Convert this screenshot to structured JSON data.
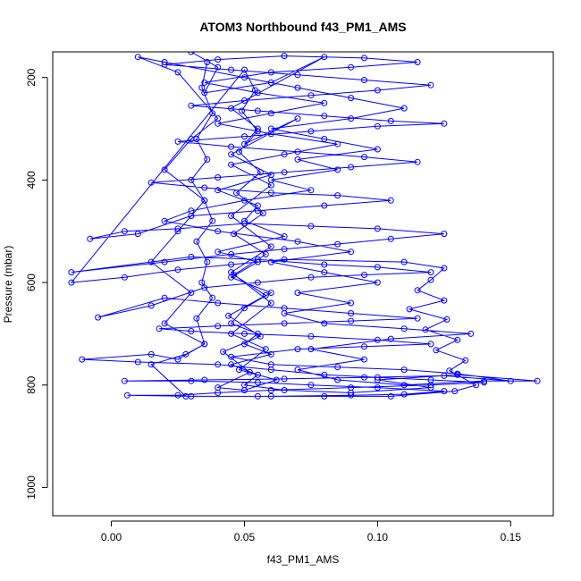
{
  "chart_data": {
    "type": "scatter",
    "title": "ATOM3 Northbound f43_PM1_AMS",
    "xlabel": "f43_PM1_AMS",
    "ylabel": "Pressure (mbar)",
    "xlim": [
      -0.022,
      0.166
    ],
    "ylim": [
      150,
      1055
    ],
    "y_reversed": true,
    "x_ticks": [
      0.0,
      0.05,
      0.1,
      0.15
    ],
    "x_tick_labels": [
      "0.00",
      "0.05",
      "0.10",
      "0.15"
    ],
    "y_ticks": [
      200,
      400,
      600,
      800,
      1000
    ],
    "y_tick_labels": [
      "200",
      "400",
      "600",
      "800",
      "1000"
    ],
    "grid": false,
    "legend": "none",
    "series": [
      {
        "color": "#0000ff",
        "marker": "open-circle",
        "line": true,
        "points": [
          [
            0.03,
            150
          ],
          [
            0.04,
            180
          ],
          [
            0.035,
            230
          ],
          [
            0.06,
            210
          ],
          [
            0.08,
            160
          ],
          [
            0.045,
            260
          ],
          [
            0.055,
            300
          ],
          [
            0.05,
            330
          ],
          [
            0.07,
            280
          ],
          [
            0.045,
            350
          ],
          [
            0.06,
            390
          ],
          [
            0.04,
            420
          ],
          [
            0.055,
            450
          ],
          [
            0.05,
            480
          ],
          [
            0.065,
            510
          ],
          [
            0.04,
            540
          ],
          [
            0.055,
            560
          ],
          [
            0.045,
            590
          ],
          [
            0.06,
            620
          ],
          [
            0.05,
            650
          ],
          [
            0.045,
            680
          ],
          [
            0.055,
            700
          ],
          [
            0.05,
            720
          ],
          [
            0.06,
            740
          ],
          [
            0.045,
            760
          ],
          [
            0.055,
            780
          ],
          [
            0.05,
            800
          ],
          [
            0.065,
            810
          ],
          [
            0.09,
            815
          ],
          [
            0.12,
            805
          ],
          [
            0.1,
            790
          ],
          [
            0.13,
            780
          ],
          [
            0.16,
            792
          ],
          [
            0.14,
            792
          ],
          [
            0.11,
            800
          ],
          [
            0.085,
            790
          ],
          [
            0.07,
            770
          ],
          [
            0.095,
            750
          ],
          [
            0.075,
            730
          ],
          [
            0.105,
            710
          ],
          [
            0.135,
            700
          ],
          [
            0.11,
            690
          ],
          [
            0.08,
            680
          ],
          [
            0.065,
            660
          ],
          [
            0.09,
            640
          ],
          [
            0.07,
            620
          ],
          [
            0.1,
            600
          ],
          [
            0.08,
            580
          ],
          [
            0.06,
            560
          ],
          [
            0.09,
            540
          ],
          [
            0.07,
            520
          ],
          [
            0.04,
            500
          ],
          [
            0.02,
            480
          ],
          [
            0.03,
            460
          ],
          [
            0.05,
            440
          ],
          [
            0.075,
            420
          ],
          [
            0.06,
            400
          ],
          [
            0.085,
            380
          ],
          [
            0.07,
            360
          ],
          [
            0.1,
            340
          ],
          [
            0.08,
            320
          ],
          [
            0.06,
            300
          ],
          [
            0.09,
            280
          ],
          [
            0.11,
            260
          ],
          [
            0.09,
            240
          ],
          [
            0.07,
            220
          ],
          [
            0.05,
            200
          ],
          [
            0.02,
            170
          ],
          [
            0.01,
            160
          ],
          [
            0.025,
            190
          ],
          [
            0.04,
            280
          ],
          [
            0.03,
            320
          ],
          [
            0.02,
            380
          ],
          [
            0.035,
            440
          ],
          [
            0.025,
            500
          ],
          [
            0.015,
            560
          ],
          [
            0.03,
            620
          ],
          [
            0.02,
            680
          ],
          [
            0.035,
            720
          ],
          [
            0.025,
            750
          ],
          [
            0.015,
            740
          ],
          [
            -0.011,
            750
          ],
          [
            0.01,
            755
          ],
          [
            0.04,
            760
          ],
          [
            0.06,
            770
          ],
          [
            0.08,
            780
          ],
          [
            0.1,
            785
          ],
          [
            0.12,
            790
          ],
          [
            0.14,
            795
          ],
          [
            0.12,
            800
          ],
          [
            0.09,
            805
          ],
          [
            0.06,
            810
          ],
          [
            0.04,
            815
          ],
          [
            0.025,
            820
          ],
          [
            0.006,
            820
          ],
          [
            0.03,
            822
          ],
          [
            0.06,
            822
          ],
          [
            0.09,
            820
          ],
          [
            0.11,
            818
          ],
          [
            0.125,
            812
          ],
          [
            0.1,
            805
          ],
          [
            0.075,
            800
          ],
          [
            0.055,
            795
          ],
          [
            0.03,
            792
          ],
          [
            0.005,
            792
          ],
          [
            0.035,
            790
          ],
          [
            0.065,
            788
          ],
          [
            0.095,
            785
          ],
          [
            0.125,
            782
          ],
          [
            0.15,
            792
          ],
          [
            0.13,
            778
          ],
          [
            0.11,
            770
          ],
          [
            0.085,
            765
          ],
          [
            0.06,
            760
          ],
          [
            0.045,
            745
          ],
          [
            0.07,
            730
          ],
          [
            0.095,
            725
          ],
          [
            0.12,
            720
          ],
          [
            0.1,
            712
          ],
          [
            0.075,
            705
          ],
          [
            0.05,
            700
          ],
          [
            0.03,
            695
          ],
          [
            0.018,
            690
          ],
          [
            0.04,
            685
          ],
          [
            0.065,
            680
          ],
          [
            0.09,
            675
          ],
          [
            0.115,
            670
          ],
          [
            0.09,
            660
          ],
          [
            0.065,
            650
          ],
          [
            0.04,
            640
          ],
          [
            0.02,
            630
          ],
          [
            -0.005,
            668
          ],
          [
            0.015,
            645
          ],
          [
            0.035,
            610
          ],
          [
            0.055,
            600
          ],
          [
            0.075,
            590
          ],
          [
            0.095,
            585
          ],
          [
            0.12,
            580
          ],
          [
            0.1,
            570
          ],
          [
            0.08,
            565
          ],
          [
            0.055,
            555
          ],
          [
            0.03,
            550
          ],
          [
            -0.015,
            580
          ],
          [
            0.02,
            560
          ],
          [
            0.045,
            545
          ],
          [
            0.065,
            535
          ],
          [
            0.085,
            525
          ],
          [
            0.105,
            515
          ],
          [
            0.125,
            505
          ],
          [
            0.1,
            495
          ],
          [
            0.075,
            490
          ],
          [
            0.05,
            485
          ],
          [
            0.025,
            495
          ],
          [
            0.005,
            500
          ],
          [
            -0.008,
            515
          ],
          [
            0.01,
            505
          ],
          [
            0.03,
            470
          ],
          [
            0.055,
            460
          ],
          [
            0.08,
            450
          ],
          [
            0.105,
            440
          ],
          [
            0.085,
            430
          ],
          [
            0.06,
            425
          ],
          [
            0.035,
            415
          ],
          [
            0.015,
            405
          ],
          [
            0.04,
            395
          ],
          [
            0.065,
            385
          ],
          [
            0.09,
            375
          ],
          [
            0.115,
            365
          ],
          [
            0.095,
            355
          ],
          [
            0.07,
            345
          ],
          [
            0.045,
            335
          ],
          [
            0.025,
            325
          ],
          [
            0.05,
            315
          ],
          [
            0.075,
            305
          ],
          [
            0.1,
            295
          ],
          [
            0.125,
            290
          ],
          [
            0.105,
            285
          ],
          [
            0.08,
            275
          ],
          [
            0.055,
            265
          ],
          [
            0.03,
            255
          ],
          [
            0.05,
            245
          ],
          [
            0.075,
            235
          ],
          [
            0.1,
            225
          ],
          [
            0.12,
            215
          ],
          [
            0.095,
            205
          ],
          [
            0.07,
            195
          ],
          [
            0.045,
            185
          ],
          [
            0.02,
            175
          ],
          [
            0.04,
            165
          ],
          [
            0.065,
            158
          ],
          [
            0.095,
            162
          ],
          [
            0.115,
            170
          ],
          [
            0.09,
            180
          ],
          [
            0.06,
            190
          ],
          [
            0.035,
            210
          ],
          [
            0.055,
            230
          ],
          [
            0.08,
            250
          ],
          [
            0.06,
            270
          ],
          [
            0.04,
            290
          ],
          [
            0.06,
            310
          ],
          [
            0.085,
            330
          ],
          [
            0.065,
            350
          ],
          [
            0.045,
            370
          ],
          [
            0.06,
            410
          ],
          [
            0.045,
            470
          ],
          [
            0.06,
            530
          ],
          [
            0.045,
            580
          ],
          [
            0.06,
            640
          ],
          [
            0.045,
            700
          ],
          [
            0.058,
            730
          ],
          [
            0.048,
            770
          ],
          [
            0.062,
            790
          ],
          [
            0.05,
            810
          ],
          [
            0.04,
            805
          ],
          [
            0.052,
            775
          ],
          [
            0.042,
            735
          ],
          [
            0.056,
            705
          ],
          [
            0.044,
            665
          ],
          [
            0.058,
            625
          ],
          [
            0.046,
            585
          ],
          [
            0.058,
            545
          ],
          [
            0.046,
            505
          ],
          [
            0.057,
            465
          ],
          [
            0.047,
            425
          ],
          [
            0.056,
            385
          ],
          [
            0.048,
            345
          ],
          [
            0.055,
            305
          ],
          [
            0.049,
            265
          ],
          [
            0.054,
            225
          ],
          [
            0.05,
            185
          ],
          [
            -0.015,
            600
          ],
          [
            0.005,
            590
          ],
          [
            0.025,
            575
          ],
          [
            0.045,
            565
          ],
          [
            0.065,
            555
          ],
          [
            0.11,
            560
          ],
          [
            0.125,
            572
          ],
          [
            0.12,
            595
          ],
          [
            0.115,
            615
          ],
          [
            0.125,
            635
          ],
          [
            0.112,
            652
          ],
          [
            0.126,
            672
          ],
          [
            0.118,
            692
          ],
          [
            0.13,
            712
          ],
          [
            0.122,
            732
          ],
          [
            0.133,
            752
          ],
          [
            0.127,
            772
          ],
          [
            0.137,
            800
          ],
          [
            0.129,
            812
          ],
          [
            0.105,
            822
          ],
          [
            0.08,
            822
          ],
          [
            0.055,
            822
          ],
          [
            0.028,
            822
          ],
          [
            0.015,
            760
          ],
          [
            0.028,
            740
          ],
          [
            0.035,
            720
          ],
          [
            0.032,
            670
          ],
          [
            0.038,
            630
          ],
          [
            0.034,
            600
          ],
          [
            0.036,
            560
          ],
          [
            0.032,
            520
          ],
          [
            0.038,
            480
          ],
          [
            0.035,
            440
          ],
          [
            0.03,
            400
          ],
          [
            0.036,
            360
          ],
          [
            0.032,
            320
          ],
          [
            0.038,
            270
          ],
          [
            0.034,
            220
          ],
          [
            0.036,
            170
          ]
        ]
      }
    ]
  }
}
